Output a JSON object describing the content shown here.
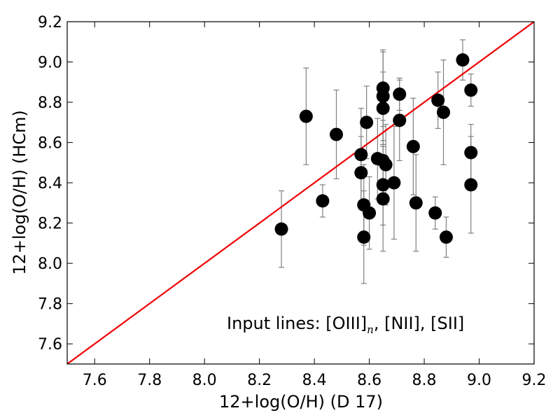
{
  "chart_data": {
    "type": "scatter",
    "title": "",
    "xlabel": "12+log(O/H) (D 17)",
    "ylabel": "12+log(O/H) (HCm)",
    "xlim": [
      7.5,
      9.2
    ],
    "ylim": [
      7.5,
      9.2
    ],
    "xticks": [
      "7.6",
      "7.8",
      "8.0",
      "8.2",
      "8.4",
      "8.6",
      "8.8",
      "9.0",
      "9.2"
    ],
    "yticks": [
      "7.6",
      "7.8",
      "8.0",
      "8.2",
      "8.4",
      "8.6",
      "8.8",
      "9.0",
      "9.2"
    ],
    "grid": false,
    "annotation": {
      "prefix": "Input lines:  [OIII]",
      "subscript": "n",
      "suffix": ", [NII], [SII]"
    },
    "identity_line": {
      "x": [
        7.5,
        9.2
      ],
      "y": [
        7.5,
        9.2
      ],
      "color": "#ee0000"
    },
    "marker_color": "#000000",
    "errorbar_color": "#808080",
    "points": [
      {
        "x": 8.28,
        "y": 8.17,
        "yerr": 0.19
      },
      {
        "x": 8.37,
        "y": 8.73,
        "yerr": 0.24
      },
      {
        "x": 8.43,
        "y": 8.31,
        "yerr": 0.08
      },
      {
        "x": 8.48,
        "y": 8.64,
        "yerr": 0.22
      },
      {
        "x": 8.57,
        "y": 8.54,
        "yerr": 0.23
      },
      {
        "x": 8.57,
        "y": 8.45,
        "yerr": 0.18
      },
      {
        "x": 8.58,
        "y": 8.13,
        "yerr": 0.23
      },
      {
        "x": 8.58,
        "y": 8.29,
        "yerr": 0.2
      },
      {
        "x": 8.59,
        "y": 8.7,
        "yerr": 0.18
      },
      {
        "x": 8.6,
        "y": 8.25,
        "yerr": 0.18
      },
      {
        "x": 8.63,
        "y": 8.52,
        "yerr": 0.2
      },
      {
        "x": 8.65,
        "y": 8.51,
        "yerr": 0.2
      },
      {
        "x": 8.65,
        "y": 8.87,
        "yerr": 0.19
      },
      {
        "x": 8.65,
        "y": 8.83,
        "yerr": 0.22
      },
      {
        "x": 8.65,
        "y": 8.77,
        "yerr": 0.18
      },
      {
        "x": 8.66,
        "y": 8.49,
        "yerr": 0.2
      },
      {
        "x": 8.65,
        "y": 8.39,
        "yerr": 0.2
      },
      {
        "x": 8.65,
        "y": 8.32,
        "yerr": 0.26
      },
      {
        "x": 8.69,
        "y": 8.4,
        "yerr": 0.28
      },
      {
        "x": 8.71,
        "y": 8.84,
        "yerr": 0.08
      },
      {
        "x": 8.71,
        "y": 8.71,
        "yerr": 0.2
      },
      {
        "x": 8.76,
        "y": 8.58,
        "yerr": 0.24
      },
      {
        "x": 8.77,
        "y": 8.3,
        "yerr": 0.24
      },
      {
        "x": 8.84,
        "y": 8.25,
        "yerr": 0.08
      },
      {
        "x": 8.85,
        "y": 8.81,
        "yerr": 0.14
      },
      {
        "x": 8.87,
        "y": 8.75,
        "yerr": 0.26
      },
      {
        "x": 8.88,
        "y": 8.13,
        "yerr": 0.1
      },
      {
        "x": 8.94,
        "y": 9.01,
        "yerr": 0.1
      },
      {
        "x": 8.97,
        "y": 8.86,
        "yerr": 0.08
      },
      {
        "x": 8.97,
        "y": 8.55,
        "yerr": 0.14
      },
      {
        "x": 8.97,
        "y": 8.39,
        "yerr": 0.24
      }
    ]
  }
}
